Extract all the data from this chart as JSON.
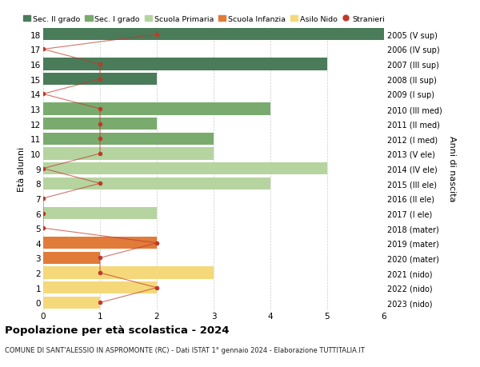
{
  "ages": [
    18,
    17,
    16,
    15,
    14,
    13,
    12,
    11,
    10,
    9,
    8,
    7,
    6,
    5,
    4,
    3,
    2,
    1,
    0
  ],
  "right_labels": [
    "2005 (V sup)",
    "2006 (IV sup)",
    "2007 (III sup)",
    "2008 (II sup)",
    "2009 (I sup)",
    "2010 (III med)",
    "2011 (II med)",
    "2012 (I med)",
    "2013 (V ele)",
    "2014 (IV ele)",
    "2015 (III ele)",
    "2016 (II ele)",
    "2017 (I ele)",
    "2018 (mater)",
    "2019 (mater)",
    "2020 (mater)",
    "2021 (nido)",
    "2022 (nido)",
    "2023 (nido)"
  ],
  "bar_values": [
    6,
    0,
    5,
    2,
    0,
    4,
    2,
    3,
    3,
    5,
    4,
    0,
    2,
    0,
    2,
    1,
    3,
    2,
    1
  ],
  "bar_colors": [
    "#4a7c59",
    "#4a7c59",
    "#4a7c59",
    "#4a7c59",
    "#4a7c59",
    "#7aab6e",
    "#7aab6e",
    "#7aab6e",
    "#b5d4a0",
    "#b5d4a0",
    "#b5d4a0",
    "#b5d4a0",
    "#b5d4a0",
    "#e07b39",
    "#e07b39",
    "#e07b39",
    "#f5d87a",
    "#f5d87a",
    "#f5d87a"
  ],
  "stranieri_x": [
    2,
    0,
    1,
    1,
    0,
    1,
    1,
    1,
    1,
    0,
    1,
    0,
    0,
    0,
    2,
    1,
    1,
    2,
    1
  ],
  "legend_labels": [
    "Sec. II grado",
    "Sec. I grado",
    "Scuola Primaria",
    "Scuola Infanzia",
    "Asilo Nido",
    "Stranieri"
  ],
  "legend_colors": [
    "#4a7c59",
    "#7aab6e",
    "#b5d4a0",
    "#e07b39",
    "#f5d87a",
    "#c0392b"
  ],
  "title": "Popolazione per età scolastica - 2024",
  "subtitle": "COMUNE DI SANT'ALESSIO IN ASPROMONTE (RC) - Dati ISTAT 1° gennaio 2024 - Elaborazione TUTTITALIA.IT",
  "ylabel_left": "Età alunni",
  "ylabel_right": "Anni di nascita",
  "xlim": [
    0,
    6
  ],
  "ylim": [
    -0.5,
    18.5
  ],
  "bg_color": "#ffffff",
  "stranieri_color": "#c0392b",
  "line_color": "#c0392b",
  "grid_color": "#cccccc"
}
